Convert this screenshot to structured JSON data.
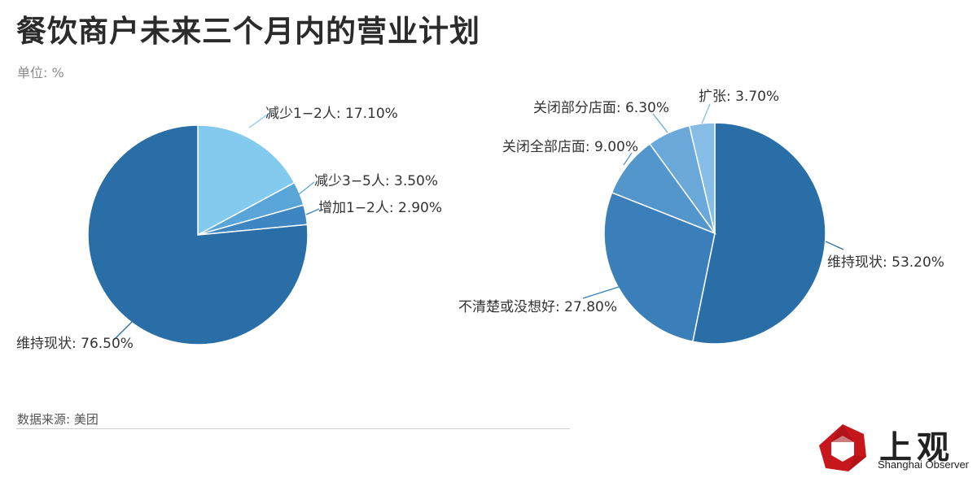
{
  "title": "餐饮商户未来三个月内的营业计划",
  "unit_label": "单位: %",
  "source": "数据来源: 美团",
  "logo": {
    "name": "上观",
    "subtitle": "Shanghai Observer",
    "color": "#c8161d"
  },
  "chart_data": [
    {
      "type": "pie",
      "slices": [
        {
          "label": "减少1−2人",
          "value": 17.1,
          "value_text": "17.10%",
          "color": "#82cbef"
        },
        {
          "label": "减少3−5人",
          "value": 3.5,
          "value_text": "3.50%",
          "color": "#5aa5d8"
        },
        {
          "label": "增加1−2人",
          "value": 2.9,
          "value_text": "2.90%",
          "color": "#3d86c2"
        },
        {
          "label": "维持现状",
          "value": 76.5,
          "value_text": "76.50%",
          "color": "#2a6ea8"
        }
      ]
    },
    {
      "type": "pie",
      "slices": [
        {
          "label": "维持现状",
          "value": 53.2,
          "value_text": "53.20%",
          "color": "#2a6ea8"
        },
        {
          "label": "不清楚或没想好",
          "value": 27.8,
          "value_text": "27.80%",
          "color": "#3a7fb9"
        },
        {
          "label": "关闭全部店面",
          "value": 9.0,
          "value_text": "9.00%",
          "color": "#5296cc"
        },
        {
          "label": "关闭部分店面",
          "value": 6.3,
          "value_text": "6.30%",
          "color": "#6aa8da"
        },
        {
          "label": "扩张",
          "value": 3.7,
          "value_text": "3.70%",
          "color": "#86bde6"
        }
      ]
    }
  ]
}
